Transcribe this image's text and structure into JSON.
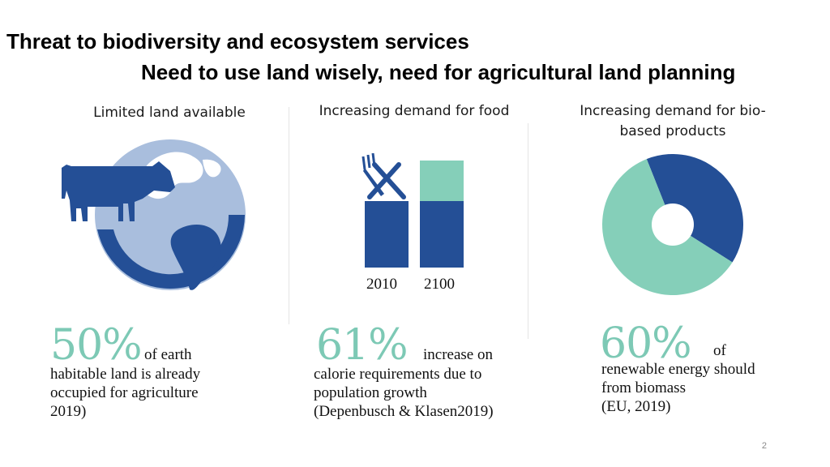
{
  "title": {
    "line1": "Threat to biodiversity and ecosystem services",
    "line2": "Need to use land wisely, need for agricultural land planning"
  },
  "columns": [
    {
      "heading": "Limited land available",
      "icon": "cow-globe-icon",
      "big_number": "50%",
      "inline_text": "of earth",
      "stat_lines": [
        "habitable land is already",
        "occupied for agriculture",
        "2019)"
      ]
    },
    {
      "heading": "Increasing demand for food",
      "icon": "fork-knife-icon",
      "years": [
        "2010",
        "2100"
      ],
      "big_number": "61%",
      "inline_text": "increase on",
      "stat_lines": [
        "calorie requirements due to",
        "population growth",
        "(Depenbusch & Klasen2019)"
      ]
    },
    {
      "heading_lines": [
        "Increasing demand for bio-",
        "based products"
      ],
      "icon": "donut-chart-icon",
      "big_number": "60%",
      "inline_text": "of",
      "stat_lines": [
        "renewable energy should",
        "from biomass",
        "(EU, 2019)"
      ]
    }
  ],
  "chart_data": [
    {
      "type": "bar",
      "categories": [
        "2010",
        "2100"
      ],
      "values": [
        1.0,
        1.61
      ],
      "series": [
        {
          "values": [
            1.0,
            1.0
          ],
          "color": "#244f96"
        },
        {
          "values": [
            0,
            0.61
          ],
          "color": "#85cfb9"
        }
      ]
    },
    {
      "type": "pie",
      "values": [
        40,
        60
      ],
      "colors": [
        "#244f96",
        "#85cfb9"
      ]
    }
  ],
  "colors": {
    "dark_blue": "#244f96",
    "light_blue": "#a9bedd",
    "teal": "#85cfb9",
    "number_teal": "#7dc9b5"
  },
  "page_number": "2"
}
